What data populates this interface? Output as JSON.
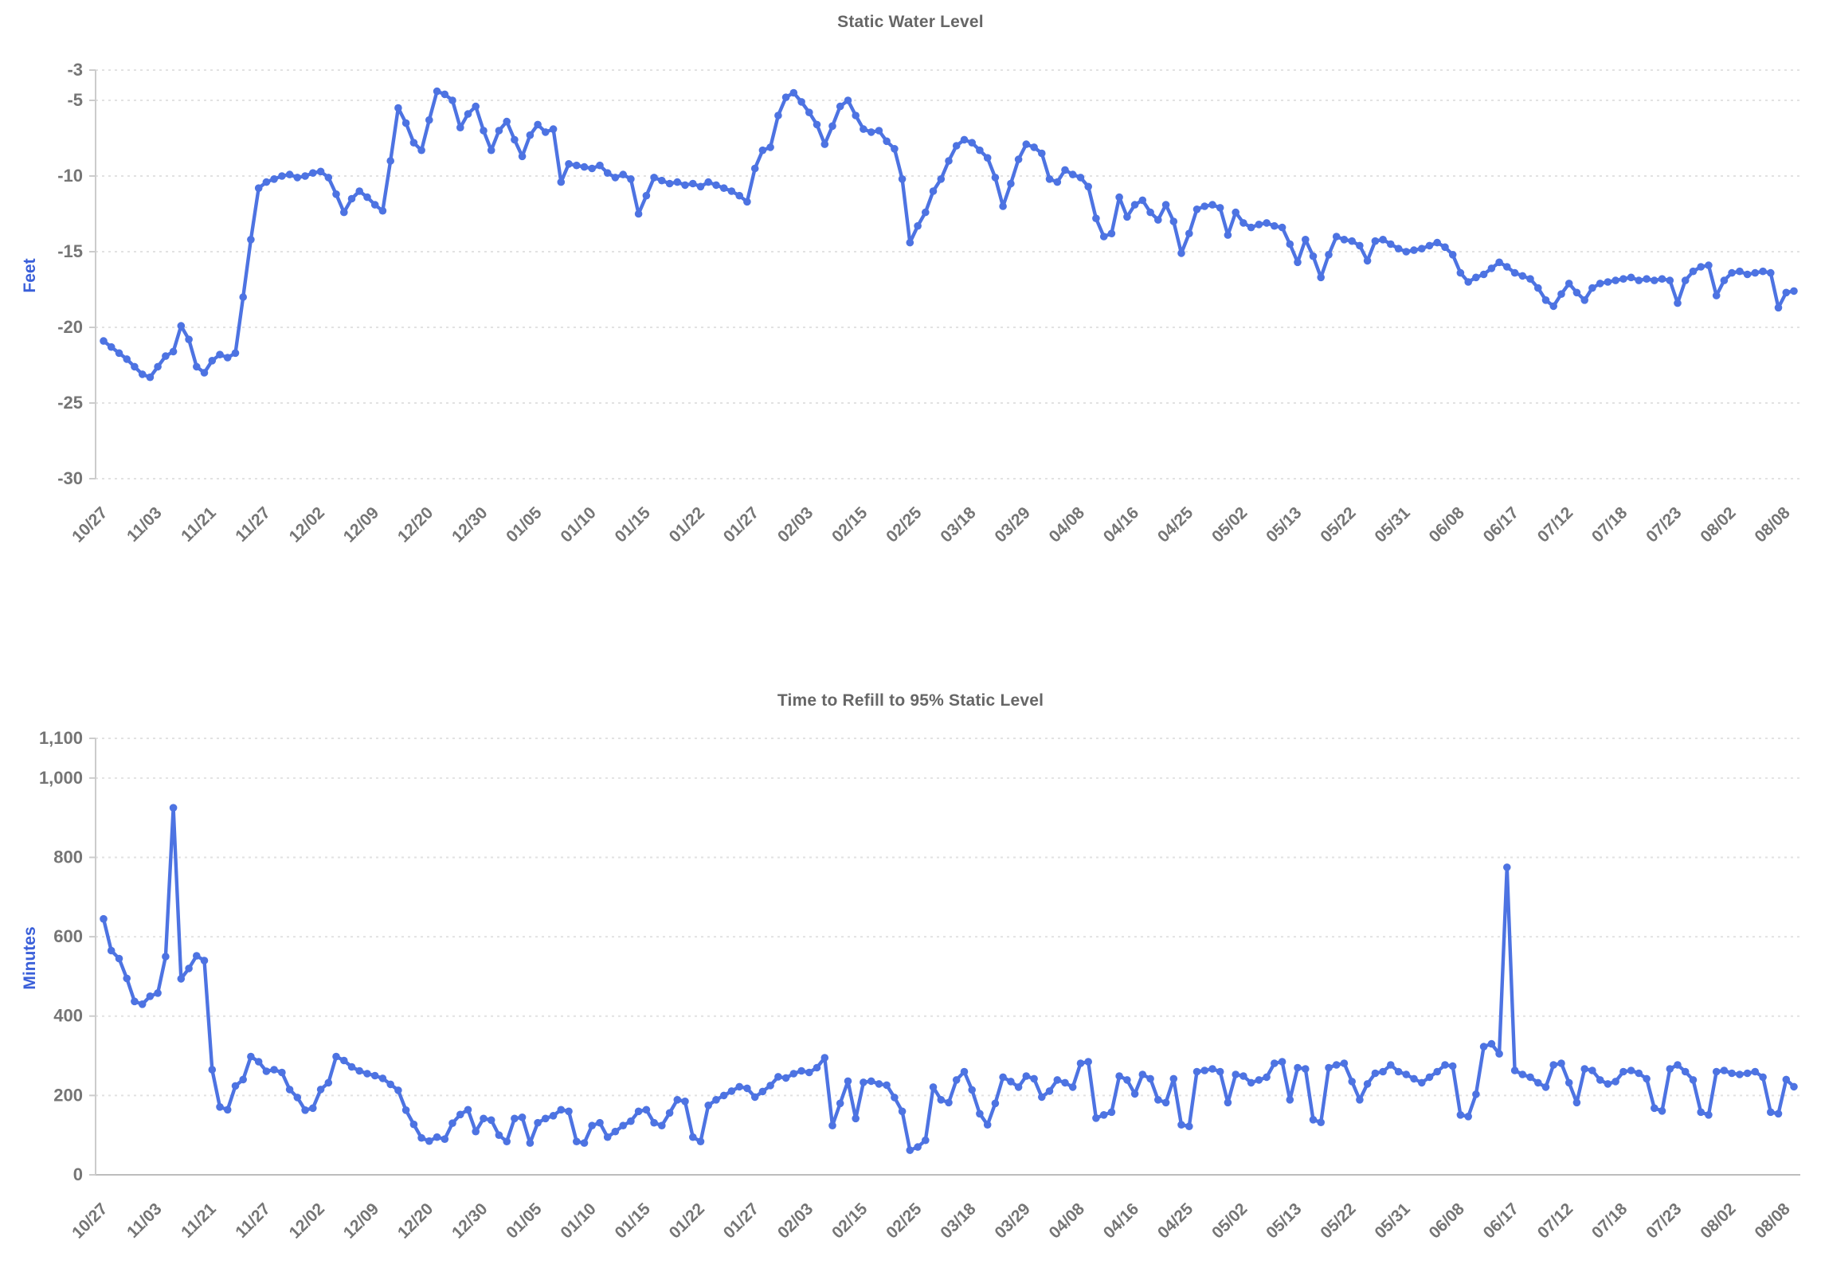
{
  "page": {
    "background": "#ffffff"
  },
  "chart_data": [
    {
      "type": "line",
      "title": "Static Water Level",
      "ylabel": "Feet",
      "series_color": "#4d73e2",
      "grid_color": "#e2e2e2",
      "axis_line_color": "#cccccc",
      "axis_text_color": "#757575",
      "title_color": "#666666",
      "ylabel_color": "#3a5fd9",
      "ylim": [
        -30,
        -3
      ],
      "grid": "dashed-horizontal",
      "legend_position": "none",
      "y_tick_values": [
        -3,
        -5,
        -10,
        -15,
        -20,
        -25,
        -30
      ],
      "y_tick_labels": [
        "-3",
        "-5",
        "-10",
        "-15",
        "-20",
        "-25",
        "-30"
      ],
      "categories": [
        "10/27",
        "11/03",
        "11/21",
        "11/27",
        "12/02",
        "12/09",
        "12/20",
        "12/30",
        "01/05",
        "01/10",
        "01/15",
        "01/22",
        "01/27",
        "02/03",
        "02/15",
        "02/25",
        "03/18",
        "03/29",
        "04/08",
        "04/16",
        "04/25",
        "05/02",
        "05/13",
        "05/22",
        "05/31",
        "06/08",
        "06/17",
        "07/12",
        "07/18",
        "07/23",
        "08/02",
        "08/08"
      ],
      "points_per_label": 7,
      "values": [
        -20.9,
        -21.3,
        -21.7,
        -22.1,
        -22.6,
        -23.1,
        -23.3,
        -22.6,
        -21.9,
        -21.6,
        -19.9,
        -20.8,
        -22.6,
        -23.0,
        -22.2,
        -21.8,
        -22.0,
        -21.7,
        -18.0,
        -14.2,
        -10.8,
        -10.4,
        -10.2,
        -10.0,
        -9.9,
        -10.1,
        -10.0,
        -9.8,
        -9.7,
        -10.1,
        -11.2,
        -12.4,
        -11.5,
        -11.0,
        -11.4,
        -11.9,
        -12.3,
        -9.0,
        -5.5,
        -6.5,
        -7.8,
        -8.3,
        -6.3,
        -4.4,
        -4.6,
        -5.0,
        -6.8,
        -5.9,
        -5.4,
        -7.0,
        -8.3,
        -7.0,
        -6.4,
        -7.6,
        -8.7,
        -7.3,
        -6.6,
        -7.1,
        -6.9,
        -10.4,
        -9.2,
        -9.3,
        -9.4,
        -9.5,
        -9.3,
        -9.8,
        -10.1,
        -9.9,
        -10.2,
        -12.5,
        -11.3,
        -10.1,
        -10.3,
        -10.5,
        -10.4,
        -10.6,
        -10.5,
        -10.7,
        -10.4,
        -10.6,
        -10.8,
        -11.0,
        -11.3,
        -11.7,
        -9.5,
        -8.3,
        -8.1,
        -6.0,
        -4.8,
        -4.5,
        -5.1,
        -5.8,
        -6.6,
        -7.9,
        -6.7,
        -5.4,
        -5.0,
        -6.0,
        -6.9,
        -7.1,
        -7.0,
        -7.7,
        -8.2,
        -10.2,
        -14.4,
        -13.3,
        -12.4,
        -11.0,
        -10.2,
        -9.0,
        -8.0,
        -7.6,
        -7.8,
        -8.3,
        -8.8,
        -10.1,
        -12.0,
        -10.5,
        -8.9,
        -7.9,
        -8.1,
        -8.5,
        -10.2,
        -10.4,
        -9.6,
        -9.9,
        -10.1,
        -10.7,
        -12.8,
        -14.0,
        -13.8,
        -11.4,
        -12.7,
        -11.9,
        -11.6,
        -12.4,
        -12.9,
        -11.9,
        -13.0,
        -15.1,
        -13.8,
        -12.2,
        -12.0,
        -11.9,
        -12.1,
        -13.9,
        -12.4,
        -13.1,
        -13.4,
        -13.2,
        -13.1,
        -13.3,
        -13.4,
        -14.5,
        -15.7,
        -14.2,
        -15.3,
        -16.7,
        -15.2,
        -14.0,
        -14.2,
        -14.3,
        -14.6,
        -15.6,
        -14.3,
        -14.2,
        -14.5,
        -14.8,
        -15.0,
        -14.9,
        -14.8,
        -14.6,
        -14.4,
        -14.7,
        -15.2,
        -16.4,
        -17.0,
        -16.7,
        -16.5,
        -16.1,
        -15.7,
        -16.0,
        -16.4,
        -16.6,
        -16.8,
        -17.4,
        -18.2,
        -18.6,
        -17.8,
        -17.1,
        -17.7,
        -18.2,
        -17.4,
        -17.1,
        -17.0,
        -16.9,
        -16.8,
        -16.7,
        -16.9,
        -16.8,
        -16.9,
        -16.8,
        -16.9,
        -18.4,
        -16.9,
        -16.3,
        -16.0,
        -15.9,
        -17.9,
        -16.9,
        -16.4,
        -16.3,
        -16.5,
        -16.4,
        -16.3,
        -16.4,
        -18.7,
        -17.7,
        -17.6
      ]
    },
    {
      "type": "line",
      "title": "Time to Refill to 95% Static Level",
      "ylabel": "Minutes",
      "series_color": "#4d73e2",
      "grid_color": "#e2e2e2",
      "axis_line_color": "#cccccc",
      "axis_text_color": "#757575",
      "title_color": "#666666",
      "ylabel_color": "#3a5fd9",
      "ylim": [
        0,
        1100
      ],
      "grid": "dashed-horizontal",
      "legend_position": "none",
      "y_tick_values": [
        0,
        200,
        400,
        600,
        800,
        1000,
        1100
      ],
      "y_tick_labels": [
        "0",
        "200",
        "400",
        "600",
        "800",
        "1,000",
        "1,100"
      ],
      "categories": [
        "10/27",
        "11/03",
        "11/21",
        "11/27",
        "12/02",
        "12/09",
        "12/20",
        "12/30",
        "01/05",
        "01/10",
        "01/15",
        "01/22",
        "01/27",
        "02/03",
        "02/15",
        "02/25",
        "03/18",
        "03/29",
        "04/08",
        "04/16",
        "04/25",
        "05/02",
        "05/13",
        "05/22",
        "05/31",
        "06/08",
        "06/17",
        "07/12",
        "07/18",
        "07/23",
        "08/02",
        "08/08"
      ],
      "points_per_label": 7,
      "values": [
        645,
        565,
        545,
        495,
        437,
        430,
        450,
        458,
        550,
        925,
        494,
        520,
        552,
        540,
        265,
        171,
        164,
        224,
        240,
        298,
        285,
        261,
        265,
        258,
        215,
        195,
        163,
        168,
        215,
        232,
        298,
        288,
        272,
        262,
        255,
        250,
        243,
        228,
        213,
        163,
        127,
        93,
        85,
        95,
        90,
        130,
        152,
        164,
        109,
        142,
        138,
        100,
        84,
        142,
        145,
        80,
        131,
        142,
        149,
        164,
        160,
        84,
        80,
        124,
        131,
        95,
        109,
        124,
        135,
        160,
        164,
        131,
        124,
        156,
        189,
        185,
        95,
        84,
        175,
        189,
        200,
        211,
        222,
        218,
        196,
        210,
        225,
        247,
        244,
        255,
        262,
        258,
        270,
        295,
        124,
        180,
        236,
        142,
        233,
        236,
        229,
        226,
        195,
        160,
        62,
        70,
        87,
        221,
        189,
        182,
        239,
        260,
        214,
        154,
        126,
        180,
        246,
        235,
        221,
        249,
        242,
        196,
        211,
        239,
        232,
        221,
        281,
        285,
        143,
        151,
        158,
        249,
        239,
        204,
        253,
        242,
        189,
        182,
        242,
        126,
        122,
        260,
        263,
        267,
        260,
        182,
        253,
        249,
        232,
        239,
        246,
        281,
        285,
        189,
        270,
        267,
        139,
        132,
        270,
        277,
        281,
        235,
        189,
        229,
        256,
        260,
        277,
        260,
        253,
        242,
        232,
        246,
        260,
        277,
        274,
        151,
        147,
        203,
        323,
        330,
        305,
        775,
        263,
        253,
        246,
        232,
        221,
        277,
        281,
        232,
        182,
        267,
        263,
        239,
        229,
        235,
        260,
        263,
        256,
        242,
        168,
        161,
        267,
        277,
        260,
        239,
        158,
        151,
        260,
        263,
        256,
        253,
        256,
        260,
        246,
        158,
        154,
        240,
        222
      ]
    }
  ]
}
